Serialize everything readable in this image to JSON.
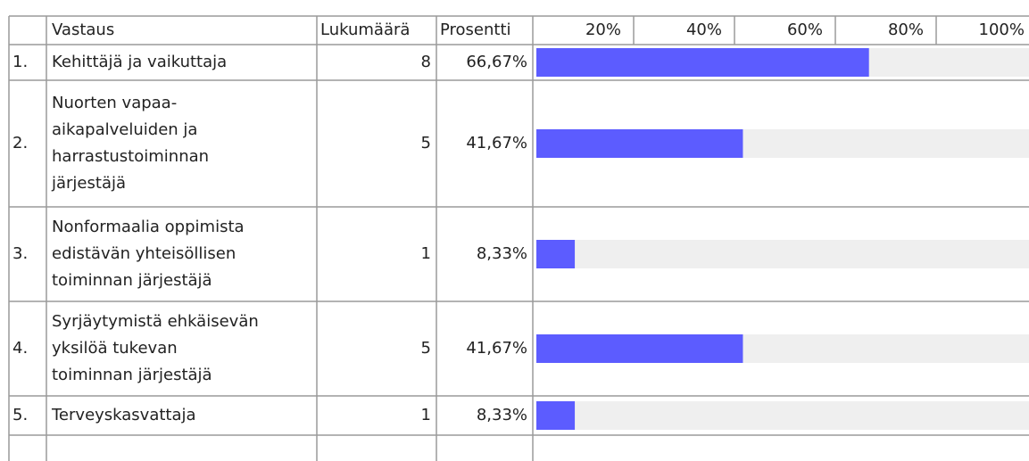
{
  "table": {
    "header": [
      "Vastaus",
      "Lukumäärä",
      "Prosentti"
    ],
    "scale": [
      {
        "value": 20,
        "label": "20%"
      },
      {
        "value": 40,
        "label": "40%"
      },
      {
        "value": 60,
        "label": "60%"
      },
      {
        "value": 80,
        "label": "80%"
      },
      {
        "value": 100,
        "label": "100%"
      }
    ],
    "bar_color": "#5c5cff",
    "rows": [
      {
        "index": "1.",
        "answer": [
          "Kehittäjä ja vaikuttaja"
        ],
        "count": 8,
        "value": 66.67,
        "value_label": "66,67%"
      },
      {
        "index": "2.",
        "answer": [
          "Nuorten vapaa-",
          "aikapalveluiden ja",
          "harrastustoiminnan",
          "järjestäjä"
        ],
        "count": 5,
        "value": 41.67,
        "value_label": "41,67%"
      },
      {
        "index": "3.",
        "answer": [
          "Nonformaalia oppimista",
          "edistävän yhteisöllisen",
          "toiminnan järjestäjä"
        ],
        "count": 1,
        "value": 8.33,
        "value_label": "8,33%"
      },
      {
        "index": "4.",
        "answer": [
          "Syrjäytymistä ehkäisevän",
          "yksilöä tukevan",
          "toiminnan järjestäjä"
        ],
        "count": 5,
        "value": 41.67,
        "value_label": "41,67%"
      },
      {
        "index": "5.",
        "answer": [
          "Terveyskasvattaja"
        ],
        "count": 1,
        "value": 8.33,
        "value_label": "8,33%"
      }
    ]
  }
}
